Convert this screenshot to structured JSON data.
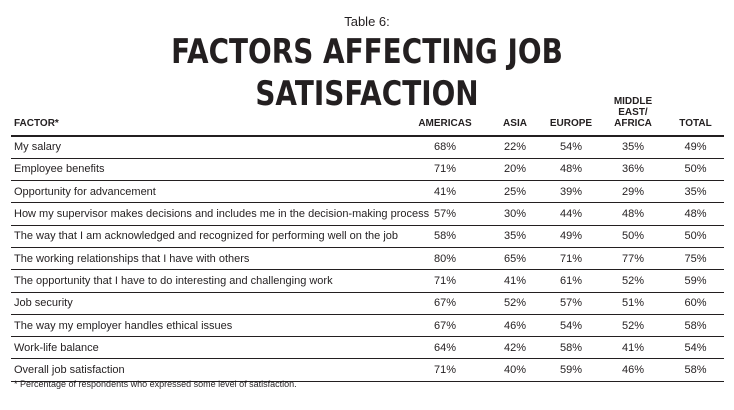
{
  "caption": "Table 6:",
  "title": "FACTORS AFFECTING JOB SATISFACTION",
  "columns": {
    "factor": "FACTOR*",
    "americas": "AMERICAS",
    "asia": "ASIA",
    "europe": "EUROPE",
    "mea_line1": "MIDDLE EAST/",
    "mea_line2": "AFRICA",
    "total": "TOTAL"
  },
  "rows": [
    {
      "factor": "My salary",
      "americas": "68%",
      "asia": "22%",
      "europe": "54%",
      "mea": "35%",
      "total": "49%"
    },
    {
      "factor": "Employee benefits",
      "americas": "71%",
      "asia": "20%",
      "europe": "48%",
      "mea": "36%",
      "total": "50%"
    },
    {
      "factor": "Opportunity for advancement",
      "americas": "41%",
      "asia": "25%",
      "europe": "39%",
      "mea": "29%",
      "total": "35%"
    },
    {
      "factor": "How my supervisor makes decisions and includes me in the decision-making process",
      "americas": "57%",
      "asia": "30%",
      "europe": "44%",
      "mea": "48%",
      "total": "48%"
    },
    {
      "factor": "The way that I am acknowledged and recognized for performing well on the job",
      "americas": "58%",
      "asia": "35%",
      "europe": "49%",
      "mea": "50%",
      "total": "50%"
    },
    {
      "factor": "The working relationships that I have with others",
      "americas": "80%",
      "asia": "65%",
      "europe": "71%",
      "mea": "77%",
      "total": "75%"
    },
    {
      "factor": "The opportunity that I have to do interesting and challenging work",
      "americas": "71%",
      "asia": "41%",
      "europe": "61%",
      "mea": "52%",
      "total": "59%"
    },
    {
      "factor": "Job security",
      "americas": "67%",
      "asia": "52%",
      "europe": "57%",
      "mea": "51%",
      "total": "60%"
    },
    {
      "factor": "The way my employer handles ethical issues",
      "americas": "67%",
      "asia": "46%",
      "europe": "54%",
      "mea": "52%",
      "total": "58%"
    },
    {
      "factor": "Work-life balance",
      "americas": "64%",
      "asia": "42%",
      "europe": "58%",
      "mea": "41%",
      "total": "54%"
    },
    {
      "factor": "Overall job satisfaction",
      "americas": "71%",
      "asia": "40%",
      "europe": "59%",
      "mea": "46%",
      "total": "58%"
    }
  ],
  "footnote": "* Percentage of respondents who expressed some level of satisfaction."
}
